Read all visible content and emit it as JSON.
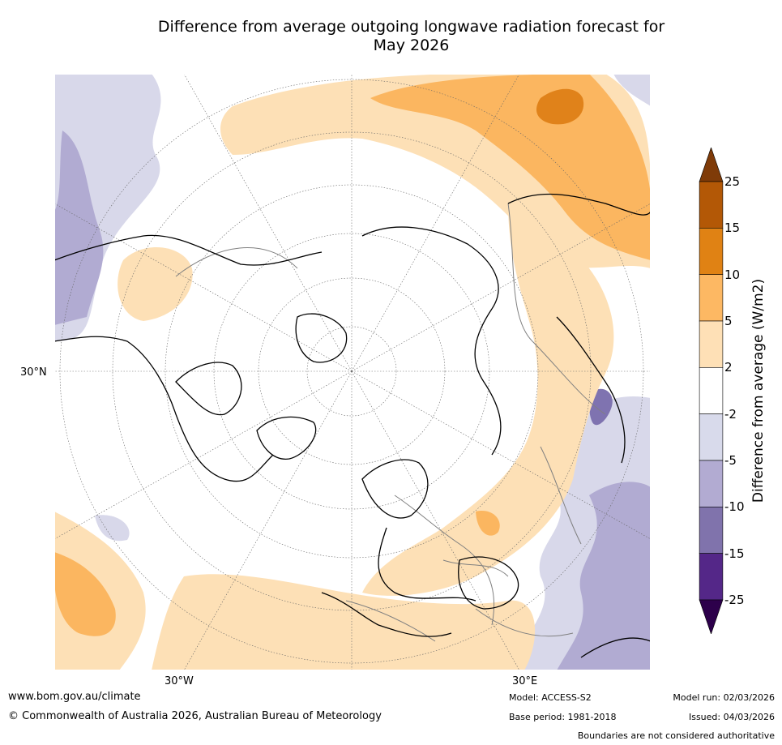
{
  "title": {
    "line1": "Difference from average outgoing longwave radiation forecast for",
    "line2": "May 2026"
  },
  "map": {
    "lat_label": "30°N",
    "lon_labels": [
      "30°W",
      "30°E"
    ],
    "colors": {
      "ocean": "#ffffff",
      "land_outline": "#000000",
      "borders": "#808080",
      "neutral": "#ffffff",
      "pos_2_5": "#fde0b6",
      "pos_5_10": "#fbb660",
      "pos_10_15": "#e0821a",
      "neg_2_5": "#d8d8ea",
      "neg_5_10": "#b1abd2",
      "neg_10_15": "#7f73b0"
    }
  },
  "colorbar": {
    "title": "Difference from average (W/m2)",
    "tick_labels": [
      "25",
      "15",
      "10",
      "5",
      "2",
      "-2",
      "-5",
      "-10",
      "-15",
      "-25"
    ],
    "bins": [
      {
        "from": 25,
        "to": 999,
        "color": "#7f3b08"
      },
      {
        "from": 15,
        "to": 25,
        "color": "#b35806"
      },
      {
        "from": 10,
        "to": 15,
        "color": "#e08214"
      },
      {
        "from": 5,
        "to": 10,
        "color": "#fdb863"
      },
      {
        "from": 2,
        "to": 5,
        "color": "#fee0b6"
      },
      {
        "from": -2,
        "to": 2,
        "color": "#ffffff"
      },
      {
        "from": -5,
        "to": -2,
        "color": "#d8daeb"
      },
      {
        "from": -10,
        "to": -5,
        "color": "#b2abd2"
      },
      {
        "from": -15,
        "to": -10,
        "color": "#8073ac"
      },
      {
        "from": -25,
        "to": -15,
        "color": "#542788"
      },
      {
        "from": -999,
        "to": -25,
        "color": "#2d004b"
      }
    ]
  },
  "footer": {
    "url": "www.bom.gov.au/climate",
    "copyright": "© Commonwealth of Australia 2026, Australian Bureau of Meteorology",
    "model": "Model: ACCESS-S2",
    "base_period": "Base period: 1981-2018",
    "model_run": "Model run: 02/03/2026",
    "issued": "Issued: 04/03/2026",
    "disclaimer": "Boundaries are not considered authoritative"
  }
}
